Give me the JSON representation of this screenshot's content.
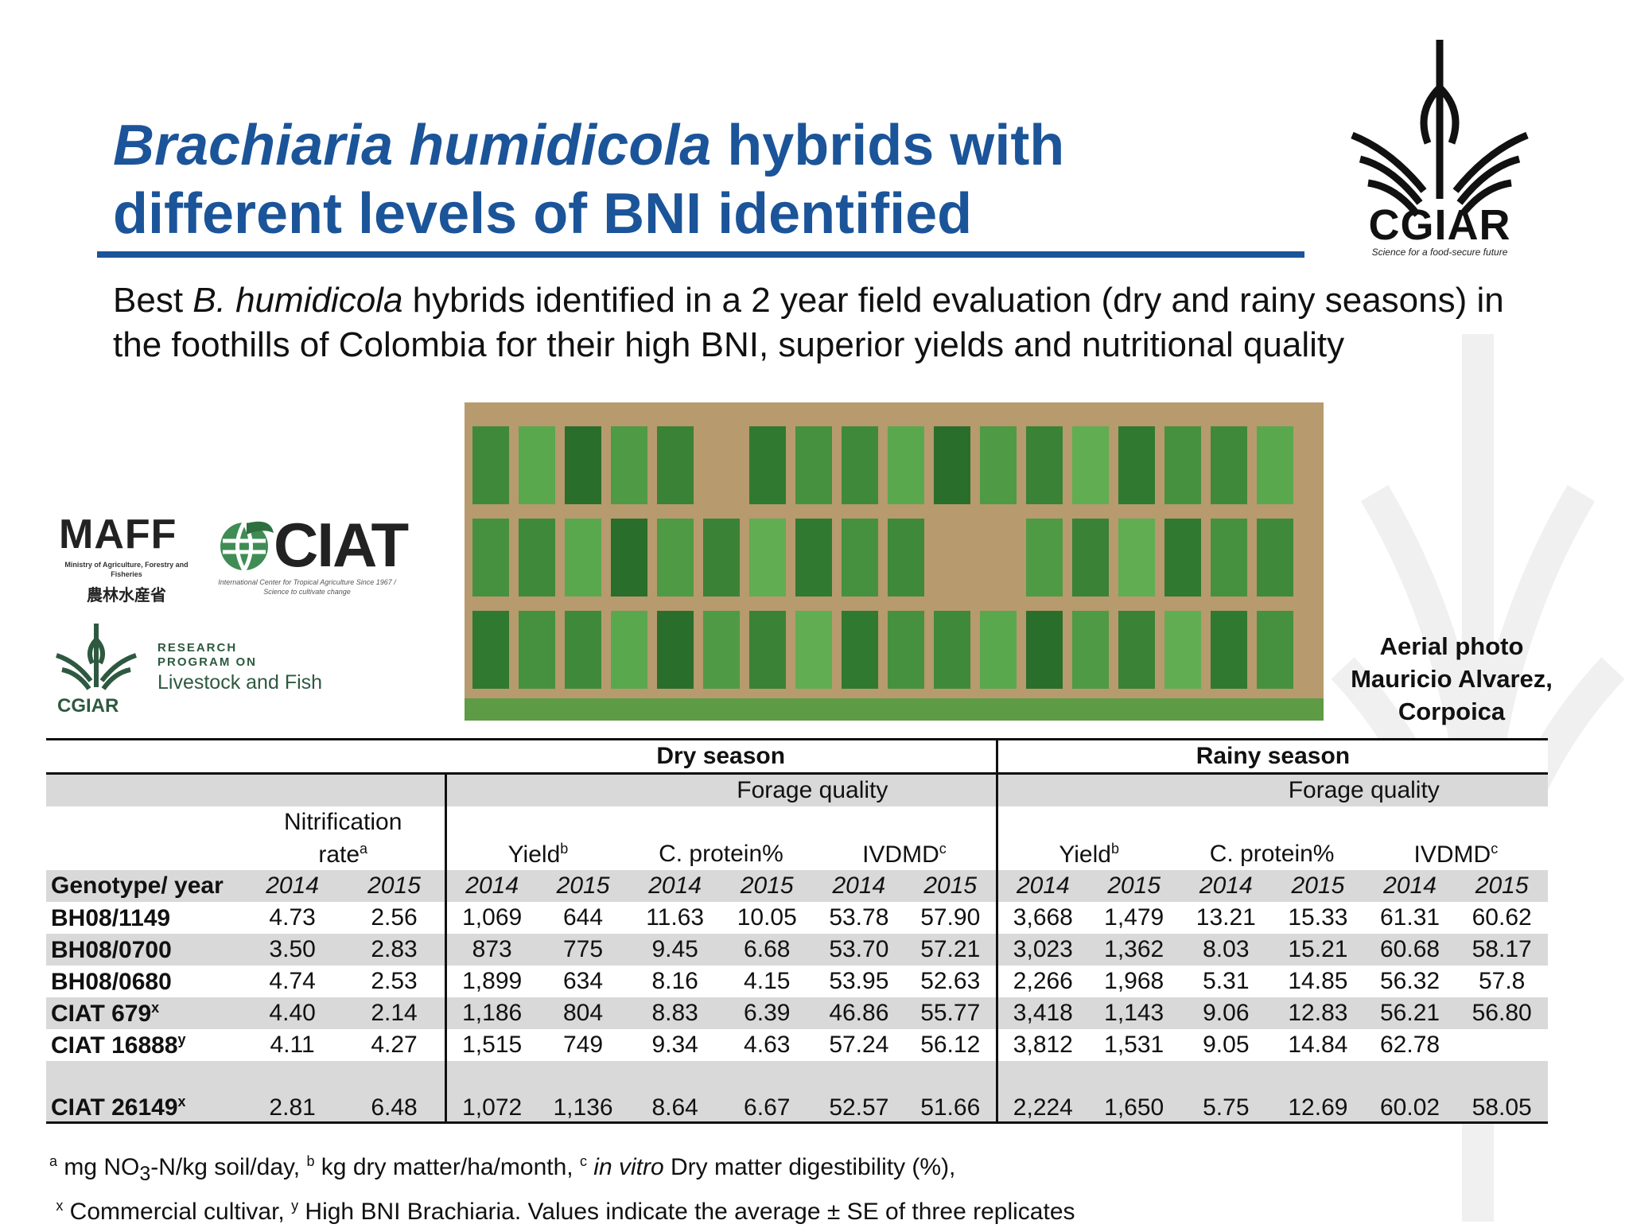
{
  "title": {
    "italic_part": "Brachiaria humidicola",
    "rest": " hybrids with different levels of BNI identified"
  },
  "subtitle": {
    "prefix": "Best ",
    "italic": "B. humidicola",
    "suffix": " hybrids identified in a 2 year field evaluation (dry and rainy seasons) in the foothills of Colombia for their high BNI, superior yields and nutritional quality"
  },
  "logos": {
    "cgiar": {
      "name": "CGIAR",
      "tagline": "Science for a food-secure future"
    },
    "maff": {
      "name": "MAFF",
      "sub": "Ministry of Agriculture, Forestry and Fisheries",
      "jp": "農林水産省"
    },
    "ciat": {
      "name": "CIAT",
      "sub": "International Center for Tropical Agriculture Since 1967 / Science to cultivate change"
    },
    "livestock_fish": {
      "research": "RESEARCH",
      "program": "PROGRAM ON",
      "name": "Livestock and Fish",
      "org": "CGIAR"
    }
  },
  "photo_caption": [
    "Aerial photo",
    "Mauricio Alvarez,",
    "Corpoica"
  ],
  "table": {
    "dry_season": "Dry season",
    "rainy_season": "Rainy season",
    "forage_quality": "Forage quality",
    "nitrification_line1": "Nitrification",
    "nitrification_line2": "rate",
    "nitrification_sup": "a",
    "yield": "Yield",
    "yield_sup": "b",
    "protein": "C. protein%",
    "ivdmd": "IVDMD",
    "ivdmd_sup": "c",
    "genotype_header": "Genotype/ year",
    "years": [
      "2014",
      "2015"
    ],
    "rows": [
      {
        "genotype": "BH08/1149",
        "sup": "",
        "values": [
          "4.73",
          "2.56",
          "1,069",
          "644",
          "11.63",
          "10.05",
          "53.78",
          "57.90",
          "3,668",
          "1,479",
          "13.21",
          "15.33",
          "61.31",
          "60.62"
        ]
      },
      {
        "genotype": "BH08/0700",
        "sup": "",
        "values": [
          "3.50",
          "2.83",
          "873",
          "775",
          "9.45",
          "6.68",
          "53.70",
          "57.21",
          "3,023",
          "1,362",
          "8.03",
          "15.21",
          "60.68",
          "58.17"
        ]
      },
      {
        "genotype": "BH08/0680",
        "sup": "",
        "values": [
          "4.74",
          "2.53",
          "1,899",
          "634",
          "8.16",
          "4.15",
          "53.95",
          "52.63",
          "2,266",
          "1,968",
          "5.31",
          "14.85",
          "56.32",
          "57.8"
        ]
      },
      {
        "genotype": "CIAT 679",
        "sup": "x",
        "values": [
          "4.40",
          "2.14",
          "1,186",
          "804",
          "8.83",
          "6.39",
          "46.86",
          "55.77",
          "3,418",
          "1,143",
          "9.06",
          "12.83",
          "56.21",
          "56.80"
        ]
      },
      {
        "genotype": "CIAT 16888",
        "sup": "y",
        "values": [
          "4.11",
          "4.27",
          "1,515",
          "749",
          "9.34",
          "4.63",
          "57.24",
          "56.12",
          "3,812",
          "1,531",
          "9.05",
          "14.84",
          "62.78",
          ""
        ]
      },
      {
        "genotype": "CIAT 26149",
        "sup": "x",
        "values": [
          "2.81",
          "6.48",
          "1,072",
          "1,136",
          "8.64",
          "6.67",
          "52.57",
          "51.66",
          "2,224",
          "1,650",
          "5.75",
          "12.69",
          "60.02",
          "58.05"
        ]
      }
    ]
  },
  "footnotes": {
    "line1": {
      "a_sup": "a",
      "a_text": " mg NO",
      "a_sub": "3",
      "a_text2": "-N/kg soil/day, ",
      "b_sup": "b",
      "b_text": " kg dry matter/ha/month, ",
      "c_sup": "c",
      "c_italic": " in vitro",
      "c_text": " Dry matter digestibility (%),"
    },
    "line2": {
      "x_sup": "x",
      "x_text": " Commercial cultivar, ",
      "y_sup": "y",
      "y_text": " High BNI Brachiaria. Values indicate the average ± SE of three replicates"
    }
  },
  "colors": {
    "title_blue": "#1b5499",
    "table_gray": "#d9d9d9",
    "logo_green": "#2e5940"
  }
}
